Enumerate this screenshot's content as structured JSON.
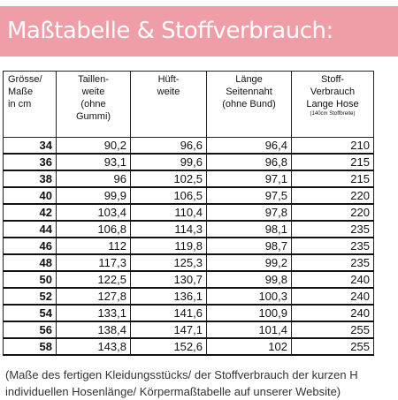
{
  "title": "Maßtabelle & Stoffverbrauch:",
  "colors": {
    "banner": "#ef9ea8",
    "banner_text": "#ffffff"
  },
  "table": {
    "headers": [
      {
        "lines": [
          "Grösse/",
          "Maße",
          "in cm"
        ]
      },
      {
        "lines": [
          "Taillen-",
          "weite",
          "(ohne",
          "Gummi)"
        ]
      },
      {
        "lines": [
          "Hüft-",
          "weite"
        ]
      },
      {
        "lines": [
          "Länge",
          "Seitennaht",
          "(ohne Bund)"
        ]
      },
      {
        "lines": [
          "Stoff-",
          "Verbrauch",
          "Lange Hose"
        ],
        "sub": "(140cm Stoffbreite)"
      }
    ],
    "rows": [
      {
        "size": "34",
        "taille": "90,2",
        "huefte": "96,6",
        "laenge": "96,4",
        "stoff": "210"
      },
      {
        "size": "36",
        "taille": "93,1",
        "huefte": "99,6",
        "laenge": "96,8",
        "stoff": "215"
      },
      {
        "size": "38",
        "taille": "96",
        "huefte": "102,5",
        "laenge": "97,1",
        "stoff": "215"
      },
      {
        "size": "40",
        "taille": "99,9",
        "huefte": "106,5",
        "laenge": "97,5",
        "stoff": "220"
      },
      {
        "size": "42",
        "taille": "103,4",
        "huefte": "110,4",
        "laenge": "97,8",
        "stoff": "220"
      },
      {
        "size": "44",
        "taille": "106,8",
        "huefte": "114,3",
        "laenge": "98,1",
        "stoff": "235"
      },
      {
        "size": "46",
        "taille": "112",
        "huefte": "119,8",
        "laenge": "98,7",
        "stoff": "235"
      },
      {
        "size": "48",
        "taille": "117,3",
        "huefte": "125,3",
        "laenge": "99,2",
        "stoff": "235"
      },
      {
        "size": "50",
        "taille": "122,5",
        "huefte": "130,7",
        "laenge": "99,8",
        "stoff": "240"
      },
      {
        "size": "52",
        "taille": "127,8",
        "huefte": "136,1",
        "laenge": "100,3",
        "stoff": "240"
      },
      {
        "size": "54",
        "taille": "133,1",
        "huefte": "141,6",
        "laenge": "100,9",
        "stoff": "240"
      },
      {
        "size": "56",
        "taille": "138,4",
        "huefte": "147,1",
        "laenge": "101,4",
        "stoff": "255"
      },
      {
        "size": "58",
        "taille": "143,8",
        "huefte": "152,6",
        "laenge": "102",
        "stoff": "255"
      }
    ]
  },
  "footnote": {
    "line1": "(Maße des fertigen Kleidungsstücks/ der Stoffverbrauch der kurzen H",
    "line2": "individuellen Hosenlänge/ Körpermaßtabelle auf unserer Website)"
  }
}
